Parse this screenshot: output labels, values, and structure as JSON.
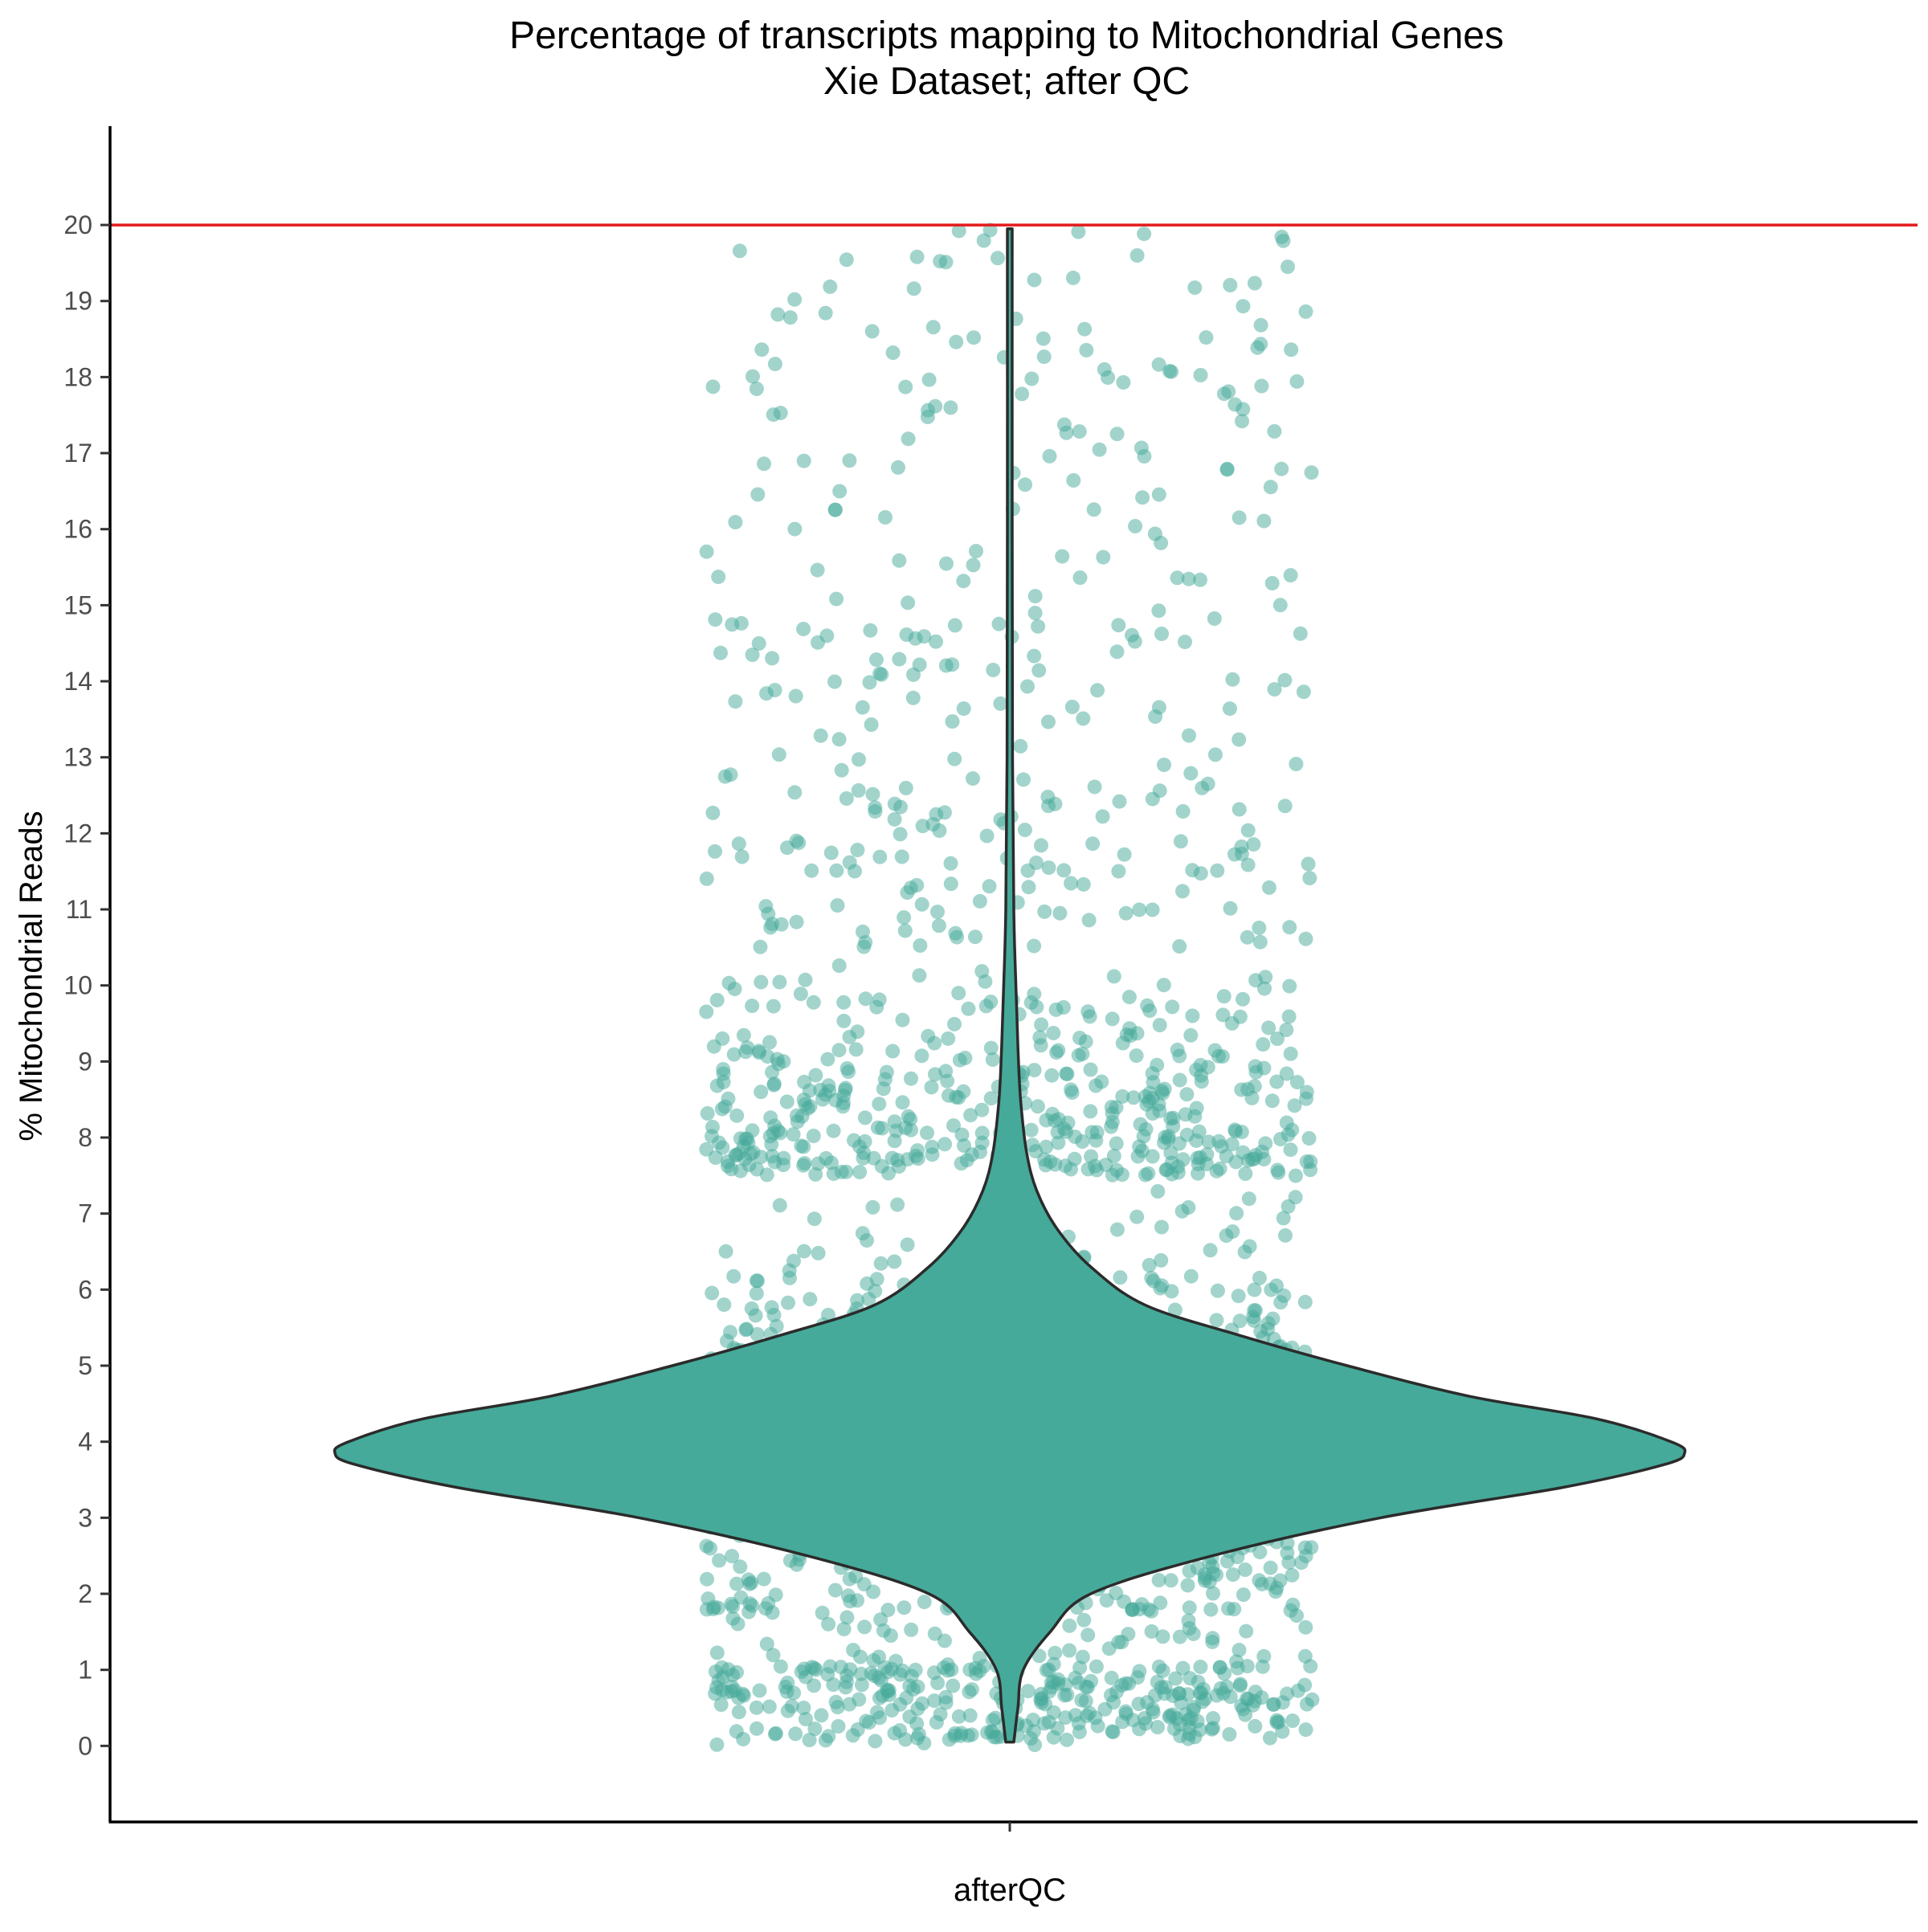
{
  "chart_data": {
    "type": "violin",
    "title_lines": [
      "Percentage of transcripts mapping to Mitochondrial Genes",
      "Xie Dataset; after QC"
    ],
    "xlabel": "",
    "ylabel": "% Mitochondrial Reads",
    "categories": [
      "afterQC"
    ],
    "ylim": [
      -1,
      21.3
    ],
    "y_ticks": [
      0,
      1,
      2,
      3,
      4,
      5,
      6,
      7,
      8,
      9,
      10,
      11,
      12,
      13,
      14,
      15,
      16,
      17,
      18,
      19,
      20
    ],
    "y_tick_labels": [
      "0",
      "1",
      "2",
      "3",
      "4",
      "5",
      "6",
      "7",
      "8",
      "9",
      "10",
      "11",
      "12",
      "13",
      "14",
      "15",
      "16",
      "17",
      "18",
      "19",
      "20"
    ],
    "threshold_line": {
      "y": 20,
      "color": "#e41a1c"
    },
    "violin": {
      "category": "afterQC",
      "min": 0.05,
      "max": 19.95,
      "mode": 3.85,
      "density_profile": [
        [
          0.05,
          0.006
        ],
        [
          0.5,
          0.012
        ],
        [
          1.0,
          0.02
        ],
        [
          1.5,
          0.06
        ],
        [
          2.0,
          0.12
        ],
        [
          2.5,
          0.3
        ],
        [
          3.0,
          0.55
        ],
        [
          3.4,
          0.82
        ],
        [
          3.7,
          0.97
        ],
        [
          3.85,
          1.0
        ],
        [
          4.0,
          0.98
        ],
        [
          4.3,
          0.87
        ],
        [
          4.6,
          0.68
        ],
        [
          5.0,
          0.5
        ],
        [
          5.4,
          0.34
        ],
        [
          5.8,
          0.2
        ],
        [
          6.3,
          0.12
        ],
        [
          6.8,
          0.07
        ],
        [
          7.3,
          0.04
        ],
        [
          7.8,
          0.025
        ],
        [
          8.5,
          0.016
        ],
        [
          9.2,
          0.012
        ],
        [
          10.0,
          0.009
        ],
        [
          11.0,
          0.006
        ],
        [
          13.0,
          0.004
        ],
        [
          16.0,
          0.003
        ],
        [
          19.95,
          0.002
        ]
      ]
    },
    "jitter_points": {
      "category": "afterQC",
      "color": "#45aa99",
      "opacity": 0.5,
      "dense_range": [
        1.0,
        7.5
      ],
      "sparse_ranges": [
        [
          0.0,
          1.0
        ],
        [
          7.5,
          10.5
        ],
        [
          10.5,
          12.5
        ],
        [
          12.5,
          20.0
        ]
      ]
    },
    "colors": {
      "violin_fill": "#45aa99",
      "violin_outline": "#2b2b2b",
      "axis": "#000000"
    },
    "grid": false,
    "legend": "none"
  }
}
